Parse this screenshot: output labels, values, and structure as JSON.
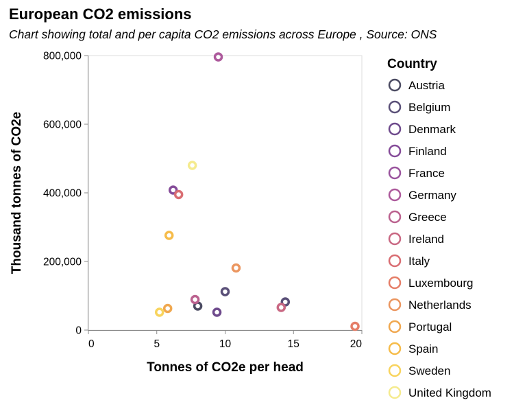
{
  "chart_data": {
    "type": "scatter",
    "title": "European CO2 emissions",
    "subtitle": "Chart showing total and per capita CO2 emissions across Europe , Source: ONS",
    "xlabel": "Tonnes of CO2e per head",
    "ylabel": "Thousand tonnes of CO2e",
    "xlim": [
      0,
      20
    ],
    "ylim": [
      0,
      800000
    ],
    "x_ticks": [
      0,
      5,
      10,
      15,
      20
    ],
    "y_ticks": [
      0,
      200000,
      400000,
      600000,
      800000
    ],
    "x_tick_labels": [
      "0",
      "5",
      "10",
      "15",
      "20"
    ],
    "y_tick_labels": [
      "0",
      "200,000",
      "400,000",
      "600,000",
      "800,000"
    ],
    "grid": false,
    "legend": {
      "title": "Country",
      "placement": "right"
    },
    "series": [
      {
        "name": "Austria",
        "color": "#4b4b62",
        "points": [
          {
            "x": 8.0,
            "y": 70000
          }
        ]
      },
      {
        "name": "Belgium",
        "color": "#5a5078",
        "points": [
          {
            "x": 10.0,
            "y": 112000
          },
          {
            "x": 14.4,
            "y": 82000
          }
        ]
      },
      {
        "name": "Denmark",
        "color": "#6e4a8c",
        "points": [
          {
            "x": 9.4,
            "y": 52000
          }
        ]
      },
      {
        "name": "Finland",
        "color": "#854c99",
        "points": [
          {
            "x": 6.2,
            "y": 408000
          }
        ]
      },
      {
        "name": "France",
        "color": "#9a549e",
        "points": []
      },
      {
        "name": "Germany",
        "color": "#ad5a9c",
        "points": [
          {
            "x": 9.5,
            "y": 796000
          }
        ]
      },
      {
        "name": "Greece",
        "color": "#bb628f",
        "points": [
          {
            "x": 7.8,
            "y": 89000
          }
        ]
      },
      {
        "name": "Ireland",
        "color": "#c96883",
        "points": [
          {
            "x": 14.1,
            "y": 66000
          }
        ]
      },
      {
        "name": "Italy",
        "color": "#d96e73",
        "points": [
          {
            "x": 6.6,
            "y": 395000
          }
        ]
      },
      {
        "name": "Luxembourg",
        "color": "#e57e68",
        "points": [
          {
            "x": 19.5,
            "y": 11000
          }
        ]
      },
      {
        "name": "Netherlands",
        "color": "#eb9660",
        "points": [
          {
            "x": 10.8,
            "y": 181000
          }
        ]
      },
      {
        "name": "Portugal",
        "color": "#f0a850",
        "points": [
          {
            "x": 5.8,
            "y": 63000
          }
        ]
      },
      {
        "name": "Spain",
        "color": "#f6bc4a",
        "points": [
          {
            "x": 5.9,
            "y": 276000
          }
        ]
      },
      {
        "name": "Sweden",
        "color": "#f8d45e",
        "points": [
          {
            "x": 5.2,
            "y": 52000
          }
        ]
      },
      {
        "name": "United Kingdom",
        "color": "#f5eb8f",
        "points": [
          {
            "x": 7.6,
            "y": 480000
          }
        ]
      }
    ]
  }
}
